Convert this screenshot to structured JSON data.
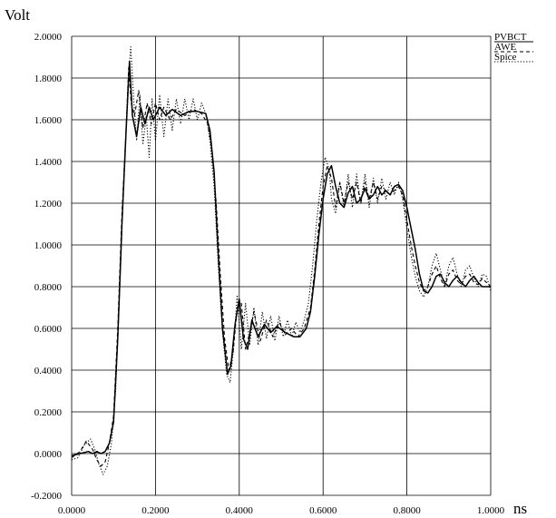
{
  "chart_data": {
    "type": "line",
    "title": "",
    "ylabel": "Volt",
    "xlabel": "ns",
    "xlim": [
      0.0,
      1.0
    ],
    "ylim": [
      -0.2,
      2.0
    ],
    "grid": true,
    "legend_position": "top-right",
    "x_ticks": [
      0.0,
      0.2,
      0.4,
      0.6,
      0.8,
      1.0
    ],
    "x_tick_labels": [
      "0.0000",
      "0.2000",
      "0.4000",
      "0.6000",
      "0.8000",
      "1.0000"
    ],
    "y_ticks": [
      -0.2,
      0.0,
      0.2,
      0.4,
      0.6,
      0.8,
      1.0,
      1.2,
      1.4,
      1.6,
      1.8,
      2.0
    ],
    "y_tick_labels": [
      "-0.2000",
      "0.0000",
      "0.2000",
      "0.4000",
      "0.6000",
      "0.8000",
      "1.0000",
      "1.2000",
      "1.4000",
      "1.6000",
      "1.8000",
      "2.0000"
    ],
    "series": [
      {
        "name": "PVBCT",
        "style": "solid",
        "color": "#000000",
        "points": [
          [
            0.0,
            -0.01
          ],
          [
            0.02,
            0.0
          ],
          [
            0.04,
            0.01
          ],
          [
            0.05,
            0.0
          ],
          [
            0.06,
            0.01
          ],
          [
            0.07,
            0.0
          ],
          [
            0.08,
            0.01
          ],
          [
            0.09,
            0.05
          ],
          [
            0.1,
            0.15
          ],
          [
            0.11,
            0.55
          ],
          [
            0.12,
            1.1
          ],
          [
            0.13,
            1.55
          ],
          [
            0.138,
            1.88
          ],
          [
            0.145,
            1.62
          ],
          [
            0.155,
            1.52
          ],
          [
            0.165,
            1.66
          ],
          [
            0.175,
            1.58
          ],
          [
            0.185,
            1.66
          ],
          [
            0.195,
            1.6
          ],
          [
            0.21,
            1.66
          ],
          [
            0.225,
            1.62
          ],
          [
            0.24,
            1.65
          ],
          [
            0.26,
            1.62
          ],
          [
            0.28,
            1.64
          ],
          [
            0.3,
            1.64
          ],
          [
            0.32,
            1.63
          ],
          [
            0.33,
            1.55
          ],
          [
            0.34,
            1.35
          ],
          [
            0.35,
            0.95
          ],
          [
            0.36,
            0.6
          ],
          [
            0.372,
            0.38
          ],
          [
            0.38,
            0.42
          ],
          [
            0.39,
            0.62
          ],
          [
            0.4,
            0.74
          ],
          [
            0.41,
            0.55
          ],
          [
            0.42,
            0.5
          ],
          [
            0.43,
            0.64
          ],
          [
            0.445,
            0.56
          ],
          [
            0.46,
            0.62
          ],
          [
            0.475,
            0.58
          ],
          [
            0.49,
            0.61
          ],
          [
            0.51,
            0.58
          ],
          [
            0.53,
            0.56
          ],
          [
            0.545,
            0.56
          ],
          [
            0.56,
            0.6
          ],
          [
            0.57,
            0.68
          ],
          [
            0.58,
            0.85
          ],
          [
            0.59,
            1.05
          ],
          [
            0.6,
            1.22
          ],
          [
            0.61,
            1.34
          ],
          [
            0.62,
            1.38
          ],
          [
            0.63,
            1.28
          ],
          [
            0.64,
            1.2
          ],
          [
            0.65,
            1.18
          ],
          [
            0.66,
            1.25
          ],
          [
            0.67,
            1.28
          ],
          [
            0.68,
            1.2
          ],
          [
            0.69,
            1.22
          ],
          [
            0.7,
            1.27
          ],
          [
            0.71,
            1.22
          ],
          [
            0.72,
            1.24
          ],
          [
            0.73,
            1.28
          ],
          [
            0.74,
            1.24
          ],
          [
            0.75,
            1.26
          ],
          [
            0.76,
            1.24
          ],
          [
            0.77,
            1.28
          ],
          [
            0.78,
            1.29
          ],
          [
            0.79,
            1.26
          ],
          [
            0.8,
            1.18
          ],
          [
            0.81,
            1.08
          ],
          [
            0.82,
            0.98
          ],
          [
            0.83,
            0.86
          ],
          [
            0.84,
            0.78
          ],
          [
            0.85,
            0.77
          ],
          [
            0.86,
            0.8
          ],
          [
            0.87,
            0.85
          ],
          [
            0.88,
            0.86
          ],
          [
            0.89,
            0.82
          ],
          [
            0.9,
            0.8
          ],
          [
            0.91,
            0.83
          ],
          [
            0.92,
            0.85
          ],
          [
            0.93,
            0.82
          ],
          [
            0.94,
            0.8
          ],
          [
            0.95,
            0.83
          ],
          [
            0.96,
            0.85
          ],
          [
            0.97,
            0.82
          ],
          [
            0.98,
            0.8
          ],
          [
            0.99,
            0.8
          ],
          [
            1.0,
            0.8
          ]
        ]
      },
      {
        "name": "AWE",
        "style": "dashed",
        "color": "#000000",
        "points": [
          [
            0.0,
            -0.02
          ],
          [
            0.02,
            0.01
          ],
          [
            0.035,
            0.06
          ],
          [
            0.05,
            0.02
          ],
          [
            0.06,
            -0.03
          ],
          [
            0.07,
            -0.06
          ],
          [
            0.08,
            -0.04
          ],
          [
            0.09,
            0.05
          ],
          [
            0.1,
            0.18
          ],
          [
            0.11,
            0.6
          ],
          [
            0.12,
            1.15
          ],
          [
            0.13,
            1.55
          ],
          [
            0.136,
            1.85
          ],
          [
            0.142,
            1.68
          ],
          [
            0.15,
            1.62
          ],
          [
            0.16,
            1.74
          ],
          [
            0.17,
            1.56
          ],
          [
            0.18,
            1.68
          ],
          [
            0.19,
            1.58
          ],
          [
            0.2,
            1.68
          ],
          [
            0.21,
            1.6
          ],
          [
            0.22,
            1.66
          ],
          [
            0.235,
            1.6
          ],
          [
            0.25,
            1.65
          ],
          [
            0.27,
            1.62
          ],
          [
            0.29,
            1.65
          ],
          [
            0.31,
            1.63
          ],
          [
            0.325,
            1.58
          ],
          [
            0.335,
            1.45
          ],
          [
            0.345,
            1.2
          ],
          [
            0.355,
            0.85
          ],
          [
            0.365,
            0.55
          ],
          [
            0.375,
            0.4
          ],
          [
            0.385,
            0.48
          ],
          [
            0.395,
            0.7
          ],
          [
            0.405,
            0.72
          ],
          [
            0.415,
            0.5
          ],
          [
            0.425,
            0.58
          ],
          [
            0.435,
            0.68
          ],
          [
            0.45,
            0.54
          ],
          [
            0.465,
            0.64
          ],
          [
            0.48,
            0.56
          ],
          [
            0.495,
            0.63
          ],
          [
            0.51,
            0.57
          ],
          [
            0.525,
            0.6
          ],
          [
            0.54,
            0.56
          ],
          [
            0.555,
            0.6
          ],
          [
            0.57,
            0.7
          ],
          [
            0.58,
            0.88
          ],
          [
            0.59,
            1.1
          ],
          [
            0.6,
            1.28
          ],
          [
            0.61,
            1.38
          ],
          [
            0.62,
            1.32
          ],
          [
            0.63,
            1.18
          ],
          [
            0.64,
            1.3
          ],
          [
            0.65,
            1.2
          ],
          [
            0.66,
            1.3
          ],
          [
            0.67,
            1.22
          ],
          [
            0.68,
            1.3
          ],
          [
            0.69,
            1.2
          ],
          [
            0.7,
            1.3
          ],
          [
            0.71,
            1.22
          ],
          [
            0.72,
            1.3
          ],
          [
            0.73,
            1.22
          ],
          [
            0.74,
            1.28
          ],
          [
            0.76,
            1.24
          ],
          [
            0.78,
            1.28
          ],
          [
            0.79,
            1.24
          ],
          [
            0.8,
            1.12
          ],
          [
            0.81,
            1.0
          ],
          [
            0.82,
            0.9
          ],
          [
            0.83,
            0.82
          ],
          [
            0.84,
            0.78
          ],
          [
            0.85,
            0.8
          ],
          [
            0.86,
            0.86
          ],
          [
            0.87,
            0.9
          ],
          [
            0.88,
            0.84
          ],
          [
            0.89,
            0.8
          ],
          [
            0.9,
            0.86
          ],
          [
            0.91,
            0.88
          ],
          [
            0.92,
            0.83
          ],
          [
            0.93,
            0.81
          ],
          [
            0.94,
            0.85
          ],
          [
            0.95,
            0.86
          ],
          [
            0.96,
            0.82
          ],
          [
            0.97,
            0.81
          ],
          [
            0.98,
            0.84
          ],
          [
            0.99,
            0.82
          ],
          [
            1.0,
            0.8
          ]
        ]
      },
      {
        "name": "Spice",
        "style": "dotted",
        "color": "#000000",
        "points": [
          [
            0.0,
            -0.03
          ],
          [
            0.015,
            -0.02
          ],
          [
            0.03,
            0.04
          ],
          [
            0.045,
            0.07
          ],
          [
            0.055,
            0.02
          ],
          [
            0.065,
            -0.05
          ],
          [
            0.075,
            -0.1
          ],
          [
            0.085,
            -0.06
          ],
          [
            0.095,
            0.05
          ],
          [
            0.105,
            0.3
          ],
          [
            0.115,
            0.8
          ],
          [
            0.125,
            1.35
          ],
          [
            0.135,
            1.8
          ],
          [
            0.141,
            1.95
          ],
          [
            0.148,
            1.7
          ],
          [
            0.155,
            1.5
          ],
          [
            0.163,
            1.72
          ],
          [
            0.17,
            1.48
          ],
          [
            0.178,
            1.62
          ],
          [
            0.185,
            1.42
          ],
          [
            0.192,
            1.7
          ],
          [
            0.2,
            1.5
          ],
          [
            0.21,
            1.72
          ],
          [
            0.22,
            1.52
          ],
          [
            0.23,
            1.7
          ],
          [
            0.24,
            1.55
          ],
          [
            0.25,
            1.7
          ],
          [
            0.26,
            1.58
          ],
          [
            0.27,
            1.7
          ],
          [
            0.28,
            1.6
          ],
          [
            0.29,
            1.7
          ],
          [
            0.3,
            1.6
          ],
          [
            0.31,
            1.68
          ],
          [
            0.32,
            1.63
          ],
          [
            0.33,
            1.5
          ],
          [
            0.34,
            1.28
          ],
          [
            0.35,
            0.9
          ],
          [
            0.36,
            0.58
          ],
          [
            0.37,
            0.38
          ],
          [
            0.378,
            0.34
          ],
          [
            0.386,
            0.5
          ],
          [
            0.395,
            0.76
          ],
          [
            0.405,
            0.5
          ],
          [
            0.415,
            0.72
          ],
          [
            0.425,
            0.52
          ],
          [
            0.435,
            0.7
          ],
          [
            0.445,
            0.52
          ],
          [
            0.455,
            0.68
          ],
          [
            0.465,
            0.55
          ],
          [
            0.475,
            0.66
          ],
          [
            0.485,
            0.54
          ],
          [
            0.495,
            0.66
          ],
          [
            0.505,
            0.56
          ],
          [
            0.515,
            0.64
          ],
          [
            0.525,
            0.56
          ],
          [
            0.535,
            0.63
          ],
          [
            0.545,
            0.58
          ],
          [
            0.555,
            0.64
          ],
          [
            0.565,
            0.72
          ],
          [
            0.575,
            0.9
          ],
          [
            0.585,
            1.12
          ],
          [
            0.595,
            1.3
          ],
          [
            0.605,
            1.42
          ],
          [
            0.615,
            1.36
          ],
          [
            0.62,
            1.22
          ],
          [
            0.63,
            1.15
          ],
          [
            0.64,
            1.3
          ],
          [
            0.65,
            1.18
          ],
          [
            0.66,
            1.34
          ],
          [
            0.67,
            1.18
          ],
          [
            0.68,
            1.34
          ],
          [
            0.69,
            1.2
          ],
          [
            0.7,
            1.34
          ],
          [
            0.71,
            1.18
          ],
          [
            0.72,
            1.32
          ],
          [
            0.73,
            1.2
          ],
          [
            0.74,
            1.32
          ],
          [
            0.75,
            1.22
          ],
          [
            0.76,
            1.3
          ],
          [
            0.77,
            1.24
          ],
          [
            0.78,
            1.3
          ],
          [
            0.79,
            1.22
          ],
          [
            0.8,
            1.08
          ],
          [
            0.81,
            0.95
          ],
          [
            0.82,
            0.85
          ],
          [
            0.83,
            0.78
          ],
          [
            0.84,
            0.75
          ],
          [
            0.85,
            0.8
          ],
          [
            0.86,
            0.9
          ],
          [
            0.87,
            0.96
          ],
          [
            0.88,
            0.88
          ],
          [
            0.89,
            0.8
          ],
          [
            0.9,
            0.9
          ],
          [
            0.91,
            0.94
          ],
          [
            0.92,
            0.86
          ],
          [
            0.93,
            0.8
          ],
          [
            0.94,
            0.88
          ],
          [
            0.95,
            0.9
          ],
          [
            0.96,
            0.84
          ],
          [
            0.97,
            0.8
          ],
          [
            0.98,
            0.86
          ],
          [
            0.99,
            0.85
          ],
          [
            1.0,
            0.78
          ]
        ]
      }
    ]
  }
}
